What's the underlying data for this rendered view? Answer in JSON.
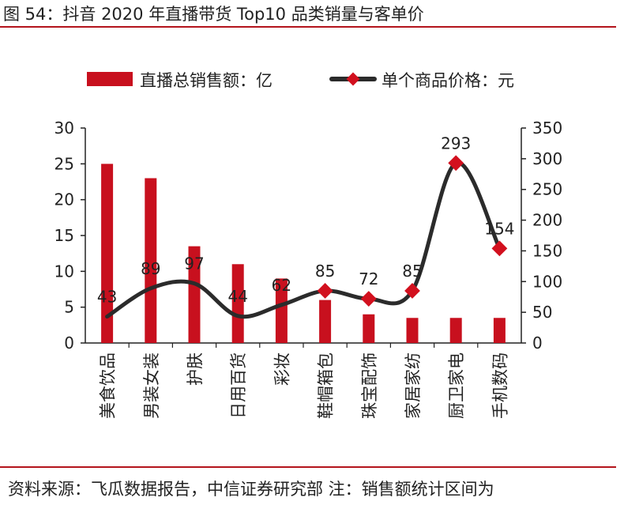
{
  "title": "图 54：抖音 2020 年直播带货 Top10 品类销量与客单价",
  "source": "资料来源：飞瓜数据报告，中信证券研究部  注：销售额统计区间为",
  "chart_data": {
    "type": "bar+line",
    "categories": [
      "美食饮品",
      "男装女装",
      "护肤",
      "日用百货",
      "彩妆",
      "鞋帽箱包",
      "珠宝配饰",
      "家居家纺",
      "厨卫家电",
      "手机数码"
    ],
    "series": [
      {
        "name": "直播总销售额：亿",
        "type": "bar",
        "axis": "left",
        "color": "#c8101e",
        "values": [
          25,
          23,
          13.5,
          11,
          9,
          6,
          4,
          3.5,
          3.5,
          3.5
        ]
      },
      {
        "name": "单个商品价格：元",
        "type": "line",
        "axis": "right",
        "color": "#2b2b2b",
        "marker_color": "#d2101e",
        "values": [
          43,
          89,
          97,
          44,
          62,
          85,
          72,
          85,
          293,
          154
        ]
      }
    ],
    "left_axis": {
      "min": 0,
      "max": 30,
      "ticks": [
        "0",
        "5",
        "10",
        "15",
        "20",
        "25",
        "30"
      ]
    },
    "right_axis": {
      "min": 0,
      "max": 350,
      "ticks": [
        "0",
        "50",
        "100",
        "150",
        "200",
        "250",
        "300",
        "350"
      ]
    },
    "legend": "top",
    "grid": false
  }
}
